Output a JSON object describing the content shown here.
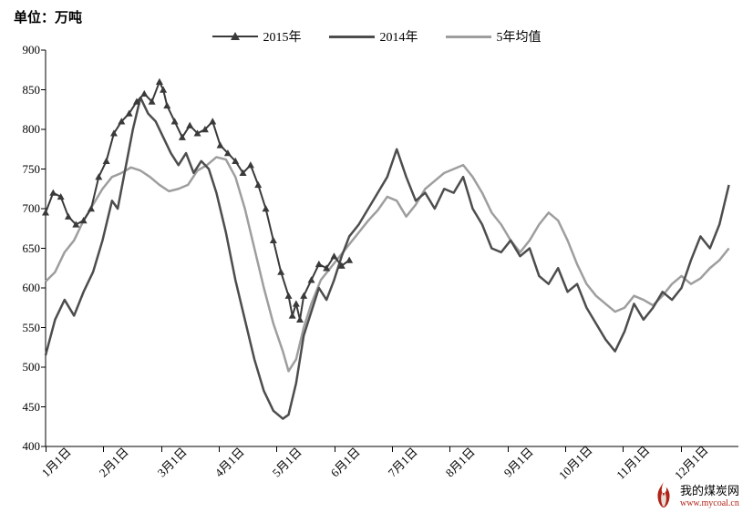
{
  "unit_label": "单位：万吨",
  "legend": {
    "series_2015": "2015年",
    "series_2014": "2014年",
    "series_5yr": "5年均值"
  },
  "colors": {
    "series_2015_line": "#3a3a3a",
    "series_2015_marker_fill": "#3a3a3a",
    "series_2014_line": "#4d4d4d",
    "series_5yr_line": "#9e9e9e",
    "axis": "#000000",
    "background": "#ffffff",
    "watermark_flame": "#b02418",
    "watermark_url": "#b02418"
  },
  "y_axis": {
    "min": 400,
    "max": 900,
    "ticks": [
      400,
      450,
      500,
      550,
      600,
      650,
      700,
      750,
      800,
      850,
      900
    ],
    "label_fontsize": 13
  },
  "x_axis": {
    "ticks": [
      "1月1日",
      "2月1日",
      "3月1日",
      "4月1日",
      "5月1日",
      "6月1日",
      "7月1日",
      "8月1日",
      "9月1日",
      "10月1日",
      "11月1日",
      "12月1日"
    ],
    "label_fontsize": 13
  },
  "series": {
    "s2015": {
      "type": "line_with_markers",
      "marker": "triangle",
      "marker_size": 8,
      "line_width": 2,
      "color": "#3a3a3a",
      "data": [
        [
          0,
          695
        ],
        [
          4,
          720
        ],
        [
          8,
          715
        ],
        [
          12,
          690
        ],
        [
          16,
          680
        ],
        [
          20,
          685
        ],
        [
          24,
          700
        ],
        [
          28,
          740
        ],
        [
          32,
          760
        ],
        [
          36,
          795
        ],
        [
          40,
          810
        ],
        [
          44,
          820
        ],
        [
          48,
          835
        ],
        [
          52,
          845
        ],
        [
          56,
          835
        ],
        [
          60,
          860
        ],
        [
          62,
          850
        ],
        [
          64,
          830
        ],
        [
          68,
          810
        ],
        [
          72,
          790
        ],
        [
          76,
          805
        ],
        [
          80,
          795
        ],
        [
          84,
          800
        ],
        [
          88,
          810
        ],
        [
          92,
          780
        ],
        [
          96,
          770
        ],
        [
          100,
          760
        ],
        [
          104,
          745
        ],
        [
          108,
          755
        ],
        [
          112,
          730
        ],
        [
          116,
          700
        ],
        [
          120,
          660
        ],
        [
          124,
          620
        ],
        [
          128,
          590
        ],
        [
          130,
          565
        ],
        [
          132,
          580
        ],
        [
          134,
          560
        ],
        [
          136,
          590
        ],
        [
          140,
          610
        ],
        [
          144,
          630
        ],
        [
          148,
          625
        ],
        [
          152,
          640
        ],
        [
          156,
          628
        ],
        [
          160,
          635
        ]
      ]
    },
    "s2014": {
      "type": "line",
      "line_width": 2.5,
      "color": "#4d4d4d",
      "data": [
        [
          0,
          515
        ],
        [
          5,
          560
        ],
        [
          10,
          585
        ],
        [
          15,
          565
        ],
        [
          20,
          595
        ],
        [
          25,
          620
        ],
        [
          30,
          660
        ],
        [
          35,
          710
        ],
        [
          38,
          700
        ],
        [
          42,
          750
        ],
        [
          46,
          800
        ],
        [
          50,
          840
        ],
        [
          54,
          820
        ],
        [
          58,
          810
        ],
        [
          62,
          790
        ],
        [
          66,
          770
        ],
        [
          70,
          755
        ],
        [
          74,
          770
        ],
        [
          78,
          745
        ],
        [
          82,
          760
        ],
        [
          86,
          750
        ],
        [
          90,
          720
        ],
        [
          95,
          670
        ],
        [
          100,
          610
        ],
        [
          105,
          560
        ],
        [
          110,
          510
        ],
        [
          115,
          470
        ],
        [
          120,
          445
        ],
        [
          125,
          435
        ],
        [
          128,
          440
        ],
        [
          132,
          480
        ],
        [
          136,
          540
        ],
        [
          140,
          570
        ],
        [
          144,
          600
        ],
        [
          148,
          585
        ],
        [
          152,
          610
        ],
        [
          156,
          640
        ],
        [
          160,
          665
        ],
        [
          165,
          680
        ],
        [
          170,
          700
        ],
        [
          175,
          720
        ],
        [
          180,
          740
        ],
        [
          185,
          775
        ],
        [
          190,
          740
        ],
        [
          195,
          710
        ],
        [
          200,
          720
        ],
        [
          205,
          700
        ],
        [
          210,
          725
        ],
        [
          215,
          720
        ],
        [
          220,
          740
        ],
        [
          225,
          700
        ],
        [
          230,
          680
        ],
        [
          235,
          650
        ],
        [
          240,
          645
        ],
        [
          245,
          660
        ],
        [
          250,
          640
        ],
        [
          255,
          650
        ],
        [
          260,
          615
        ],
        [
          265,
          605
        ],
        [
          270,
          625
        ],
        [
          275,
          595
        ],
        [
          280,
          605
        ],
        [
          285,
          575
        ],
        [
          290,
          555
        ],
        [
          295,
          535
        ],
        [
          300,
          520
        ],
        [
          305,
          545
        ],
        [
          310,
          580
        ],
        [
          315,
          560
        ],
        [
          320,
          575
        ],
        [
          325,
          595
        ],
        [
          330,
          585
        ],
        [
          335,
          600
        ],
        [
          340,
          635
        ],
        [
          345,
          665
        ],
        [
          350,
          650
        ],
        [
          355,
          680
        ],
        [
          360,
          730
        ]
      ]
    },
    "s5yr": {
      "type": "line",
      "line_width": 2.5,
      "color": "#9e9e9e",
      "data": [
        [
          0,
          608
        ],
        [
          5,
          620
        ],
        [
          10,
          645
        ],
        [
          15,
          660
        ],
        [
          20,
          685
        ],
        [
          25,
          705
        ],
        [
          30,
          725
        ],
        [
          35,
          740
        ],
        [
          40,
          745
        ],
        [
          45,
          752
        ],
        [
          50,
          748
        ],
        [
          55,
          740
        ],
        [
          60,
          730
        ],
        [
          65,
          722
        ],
        [
          70,
          725
        ],
        [
          75,
          730
        ],
        [
          80,
          748
        ],
        [
          85,
          755
        ],
        [
          90,
          765
        ],
        [
          95,
          762
        ],
        [
          100,
          740
        ],
        [
          105,
          700
        ],
        [
          110,
          650
        ],
        [
          115,
          600
        ],
        [
          120,
          555
        ],
        [
          125,
          520
        ],
        [
          128,
          495
        ],
        [
          132,
          510
        ],
        [
          136,
          550
        ],
        [
          140,
          580
        ],
        [
          145,
          610
        ],
        [
          150,
          625
        ],
        [
          155,
          640
        ],
        [
          160,
          655
        ],
        [
          165,
          670
        ],
        [
          170,
          685
        ],
        [
          175,
          698
        ],
        [
          180,
          715
        ],
        [
          185,
          710
        ],
        [
          190,
          690
        ],
        [
          195,
          705
        ],
        [
          200,
          725
        ],
        [
          205,
          735
        ],
        [
          210,
          745
        ],
        [
          215,
          750
        ],
        [
          220,
          755
        ],
        [
          225,
          740
        ],
        [
          230,
          720
        ],
        [
          235,
          695
        ],
        [
          240,
          680
        ],
        [
          245,
          660
        ],
        [
          250,
          645
        ],
        [
          255,
          660
        ],
        [
          260,
          680
        ],
        [
          265,
          695
        ],
        [
          270,
          685
        ],
        [
          275,
          660
        ],
        [
          280,
          630
        ],
        [
          285,
          605
        ],
        [
          290,
          590
        ],
        [
          295,
          580
        ],
        [
          300,
          570
        ],
        [
          305,
          575
        ],
        [
          310,
          590
        ],
        [
          315,
          585
        ],
        [
          320,
          578
        ],
        [
          325,
          590
        ],
        [
          330,
          605
        ],
        [
          335,
          615
        ],
        [
          340,
          605
        ],
        [
          345,
          612
        ],
        [
          350,
          625
        ],
        [
          355,
          635
        ],
        [
          360,
          650
        ]
      ]
    }
  },
  "watermark": {
    "name": "我的煤炭网",
    "url": "www.mycoal.cn"
  },
  "chart_type": "line",
  "x_domain": [
    0,
    365
  ]
}
